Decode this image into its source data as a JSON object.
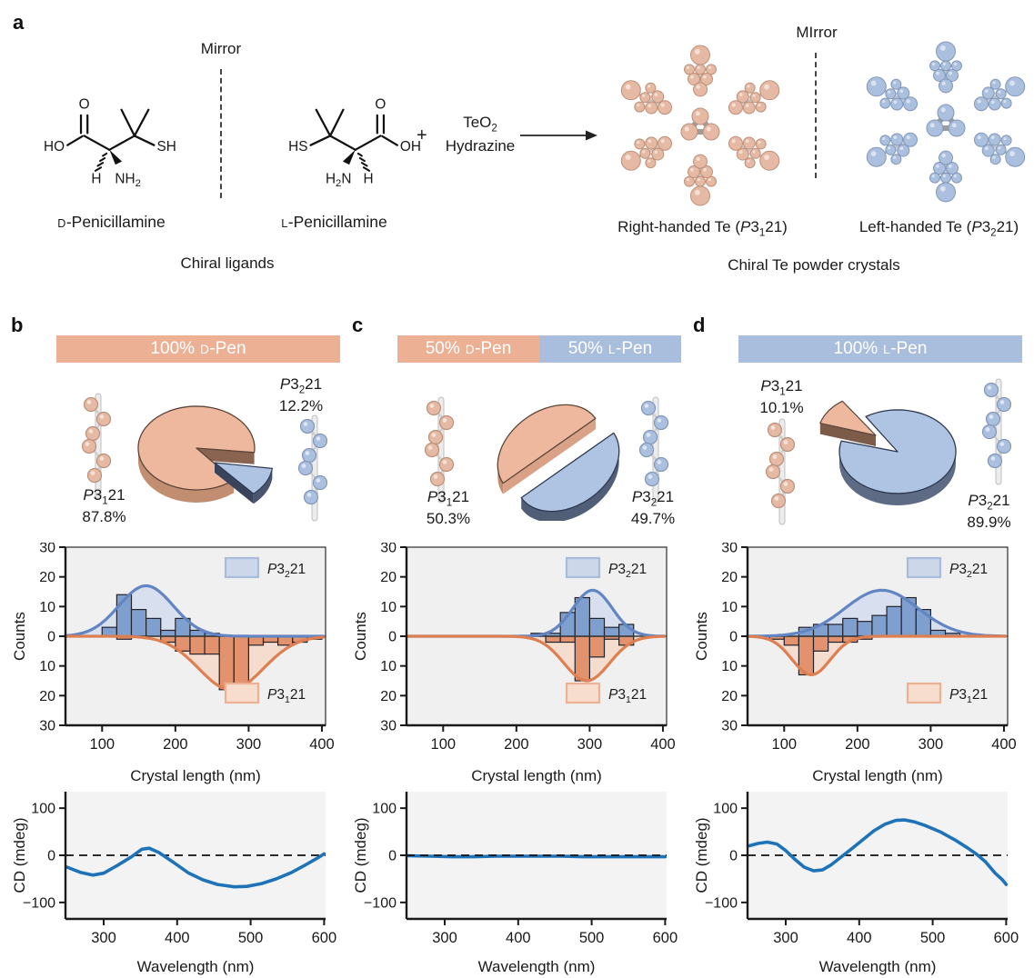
{
  "colors": {
    "salmon": "#ecb094",
    "blue": "#a9bedd",
    "salmon_bar": "#e2926c",
    "salmon_curve": "#de7f52",
    "salmon_light": "#f4d9ca",
    "salmon_legend_fill": "#f6ddce",
    "salmon_legend_stroke": "#edb294",
    "blue_bar": "#7f9fce",
    "blue_curve": "#6285c3",
    "blue_light": "#d3dcee",
    "blue_legend_fill": "#ccd7ea",
    "blue_legend_stroke": "#a9bcdc",
    "cd_line": "#1e73b8",
    "plot_bg": "#f0f0f0",
    "cd_bg": "#f3f3f3",
    "axis": "#1a1a1a",
    "sphere_pink": "#e5b9a3",
    "sphere_pink_stroke": "#bd9079",
    "sphere_blue": "#abc0de",
    "sphere_blue_stroke": "#8297b9",
    "rod": "#ececec",
    "rod_stroke": "#bfbfbf",
    "bond": "#c6c6c6"
  },
  "panel_a": {
    "label": "a",
    "mirror_left": "Mirror",
    "mirror_right": "MIrror",
    "plus": "+",
    "reagent": {
      "base": "TeO",
      "sub": "2",
      "line2": "Hydrazine"
    },
    "ligand_caption": "Chiral ligands",
    "crystal_caption": "Chiral Te powder crystals",
    "mol_left_name": {
      "iso": "D",
      "rest": "-Penicillamine"
    },
    "mol_right_name": {
      "iso": "L",
      "rest": "-Penicillamine"
    },
    "mol_left_atoms": {
      "ho": "HO",
      "o": "O",
      "sh": "SH",
      "h": "H",
      "n_base": "NH",
      "n_sub": "2"
    },
    "mol_right_atoms": {
      "hs": "HS",
      "o": "O",
      "oh": "OH",
      "h": "H",
      "n_base": "H",
      "n_sub": "2",
      "n_rest": "N"
    },
    "crystal_right_label": {
      "pre": "Right-handed Te (",
      "p": "P",
      "num": "3",
      "sub": "1",
      "post": "21)"
    },
    "crystal_left_label": {
      "pre": "Left-handed Te (",
      "p": "P",
      "num": "3",
      "sub": "2",
      "post": "21)"
    }
  },
  "panels": [
    {
      "id": "b",
      "label": "b",
      "header": {
        "segments": [
          {
            "amount": "100%",
            "iso": "D",
            "name": "-Pen"
          }
        ]
      },
      "pie_labels": {
        "major": {
          "p": "P",
          "num": "3",
          "sub": "1",
          "post": "21",
          "pct": "87.8%"
        },
        "minor": {
          "p": "P",
          "num": "3",
          "sub": "2",
          "post": "21",
          "pct": "12.2%"
        }
      }
    },
    {
      "id": "c",
      "label": "c",
      "header": {
        "segments": [
          {
            "amount": "50%",
            "iso": "D",
            "name": "-Pen"
          },
          {
            "amount": "50%",
            "iso": "L",
            "name": "-Pen"
          }
        ]
      },
      "pie_labels": {
        "major": {
          "p": "P",
          "num": "3",
          "sub": "1",
          "post": "21",
          "pct": "50.3%"
        },
        "minor": {
          "p": "P",
          "num": "3",
          "sub": "2",
          "post": "21",
          "pct": "49.7%"
        }
      }
    },
    {
      "id": "d",
      "label": "d",
      "header": {
        "segments": [
          {
            "amount": "100%",
            "iso": "L",
            "name": "-Pen"
          }
        ]
      },
      "pie_labels": {
        "major": {
          "p": "P",
          "num": "3",
          "sub": "2",
          "post": "21",
          "pct": "89.9%"
        },
        "minor": {
          "p": "P",
          "num": "3",
          "sub": "1",
          "post": "21",
          "pct": "10.1%"
        }
      }
    }
  ],
  "legend": {
    "top": {
      "p": "P",
      "num": "3",
      "sub": "2",
      "post": "21"
    },
    "bottom": {
      "p": "P",
      "num": "3",
      "sub": "1",
      "post": "21"
    }
  },
  "chart_data": [
    {
      "panel": "b",
      "type": "pie",
      "title": "100% D-Pen",
      "slices": [
        {
          "label": "P3121",
          "value": 87.8
        },
        {
          "label": "P3221",
          "value": 12.2
        }
      ]
    },
    {
      "panel": "c",
      "type": "pie",
      "title": "50% D-Pen + 50% L-Pen",
      "slices": [
        {
          "label": "P3121",
          "value": 50.3
        },
        {
          "label": "P3221",
          "value": 49.7
        }
      ]
    },
    {
      "panel": "d",
      "type": "pie",
      "title": "100% L-Pen",
      "slices": [
        {
          "label": "P3221",
          "value": 89.9
        },
        {
          "label": "P3121",
          "value": 10.1
        }
      ]
    },
    {
      "panel": "b",
      "type": "histogram",
      "xlabel": "Crystal length (nm)",
      "ylabel": "Counts",
      "xlim": [
        50,
        405
      ],
      "ylim": [
        -30,
        30
      ],
      "xticks": [
        100,
        200,
        300,
        400
      ],
      "ytick_vals": [
        30,
        20,
        10,
        0,
        -10,
        -20,
        -30
      ],
      "ytick_labels": [
        "30",
        "20",
        "10",
        "0",
        "10",
        "20",
        "30"
      ],
      "up": {
        "label": "P3221",
        "bin_start": 100,
        "bin_width": 20,
        "values": [
          3,
          14,
          9,
          6,
          2,
          6,
          2,
          1
        ]
      },
      "down": {
        "label": "P3121",
        "bin_start": 120,
        "bin_width": 20,
        "values": [
          1,
          0,
          0,
          2,
          5,
          6,
          6,
          18,
          17,
          3,
          2,
          3,
          2,
          1
        ]
      },
      "up_curve": {
        "amp": 17,
        "mu": 160,
        "sigma": 37
      },
      "down_curve": {
        "amp": 18,
        "mu": 276,
        "sigma": 44
      }
    },
    {
      "panel": "c",
      "type": "histogram",
      "xlabel": "Crystal length (nm)",
      "ylabel": "Counts",
      "xlim": [
        50,
        405
      ],
      "ylim": [
        -30,
        30
      ],
      "xticks": [
        100,
        200,
        300,
        400
      ],
      "ytick_vals": [
        30,
        20,
        10,
        0,
        -10,
        -20,
        -30
      ],
      "ytick_labels": [
        "30",
        "20",
        "10",
        "0",
        "10",
        "20",
        "30"
      ],
      "up": {
        "label": "P3221",
        "bin_start": 220,
        "bin_width": 20,
        "values": [
          1,
          1,
          8,
          13,
          6,
          3,
          4
        ]
      },
      "down": {
        "label": "P3121",
        "bin_start": 240,
        "bin_width": 20,
        "values": [
          2,
          2,
          15,
          7,
          1,
          3
        ]
      },
      "up_curve": {
        "amp": 15.5,
        "mu": 304,
        "sigma": 27
      },
      "down_curve": {
        "amp": 15,
        "mu": 296,
        "sigma": 31
      }
    },
    {
      "panel": "d",
      "type": "histogram",
      "xlabel": "Crystal length (nm)",
      "ylabel": "Counts",
      "xlim": [
        50,
        405
      ],
      "ylim": [
        -30,
        30
      ],
      "xticks": [
        100,
        200,
        300,
        400
      ],
      "ytick_vals": [
        30,
        20,
        10,
        0,
        -10,
        -20,
        -30
      ],
      "ytick_labels": [
        "30",
        "20",
        "10",
        "0",
        "10",
        "20",
        "30"
      ],
      "up": {
        "label": "P3221",
        "bin_start": 120,
        "bin_width": 20,
        "values": [
          3,
          4,
          4,
          6,
          5,
          7,
          10,
          13,
          9,
          2,
          1
        ]
      },
      "down": {
        "label": "P3121",
        "bin_start": 80,
        "bin_width": 20,
        "values": [
          1,
          3,
          13,
          5,
          2,
          2,
          1
        ]
      },
      "up_curve": {
        "amp": 15.5,
        "mu": 233,
        "sigma": 50
      },
      "down_curve": {
        "amp": 13,
        "mu": 137,
        "sigma": 26
      }
    },
    {
      "panel": "b",
      "type": "line",
      "xlabel": "Wavelength (nm)",
      "ylabel": "CD (mdeg)",
      "xlim": [
        248,
        602
      ],
      "ylim": [
        -135,
        135
      ],
      "xticks": [
        300,
        400,
        500,
        600
      ],
      "ytick_vals": [
        100,
        0,
        -100
      ],
      "ytick_labels": [
        "100",
        "0",
        "−100"
      ],
      "dashed_overlay": false,
      "points": [
        [
          250,
          -25
        ],
        [
          268,
          -36
        ],
        [
          285,
          -42
        ],
        [
          300,
          -38
        ],
        [
          318,
          -22
        ],
        [
          338,
          -3
        ],
        [
          352,
          13
        ],
        [
          362,
          15
        ],
        [
          375,
          6
        ],
        [
          395,
          -15
        ],
        [
          415,
          -37
        ],
        [
          435,
          -52
        ],
        [
          455,
          -62
        ],
        [
          478,
          -67
        ],
        [
          495,
          -66
        ],
        [
          515,
          -60
        ],
        [
          535,
          -50
        ],
        [
          555,
          -37
        ],
        [
          575,
          -20
        ],
        [
          592,
          -5
        ],
        [
          600,
          3
        ]
      ]
    },
    {
      "panel": "c",
      "type": "line",
      "xlabel": "Wavelength (nm)",
      "ylabel": "CD (mdeg)",
      "xlim": [
        248,
        602
      ],
      "ylim": [
        -135,
        135
      ],
      "xticks": [
        300,
        400,
        500,
        600
      ],
      "ytick_vals": [
        100,
        0,
        -100
      ],
      "ytick_labels": [
        "100",
        "0",
        "−100"
      ],
      "dashed_overlay": true,
      "points": [
        [
          250,
          -1
        ],
        [
          280,
          -2
        ],
        [
          310,
          -3
        ],
        [
          340,
          -3
        ],
        [
          370,
          -2
        ],
        [
          400,
          -2
        ],
        [
          430,
          -2
        ],
        [
          460,
          -2
        ],
        [
          490,
          -3
        ],
        [
          520,
          -3
        ],
        [
          550,
          -3
        ],
        [
          580,
          -3
        ],
        [
          600,
          -3
        ]
      ]
    },
    {
      "panel": "d",
      "type": "line",
      "xlabel": "Wavelength (nm)",
      "ylabel": "CD (mdeg)",
      "xlim": [
        248,
        602
      ],
      "ylim": [
        -135,
        135
      ],
      "xticks": [
        300,
        400,
        500,
        600
      ],
      "ytick_vals": [
        100,
        0,
        -100
      ],
      "ytick_labels": [
        "100",
        "0",
        "−100"
      ],
      "dashed_overlay": false,
      "points": [
        [
          250,
          20
        ],
        [
          262,
          25
        ],
        [
          275,
          28
        ],
        [
          288,
          24
        ],
        [
          300,
          10
        ],
        [
          312,
          -8
        ],
        [
          325,
          -25
        ],
        [
          338,
          -33
        ],
        [
          350,
          -31
        ],
        [
          362,
          -20
        ],
        [
          375,
          -4
        ],
        [
          390,
          14
        ],
        [
          405,
          33
        ],
        [
          420,
          52
        ],
        [
          435,
          66
        ],
        [
          450,
          74
        ],
        [
          462,
          75
        ],
        [
          475,
          71
        ],
        [
          490,
          63
        ],
        [
          510,
          50
        ],
        [
          530,
          33
        ],
        [
          548,
          15
        ],
        [
          560,
          2
        ],
        [
          572,
          -14
        ],
        [
          585,
          -38
        ],
        [
          595,
          -52
        ],
        [
          600,
          -62
        ]
      ]
    }
  ]
}
